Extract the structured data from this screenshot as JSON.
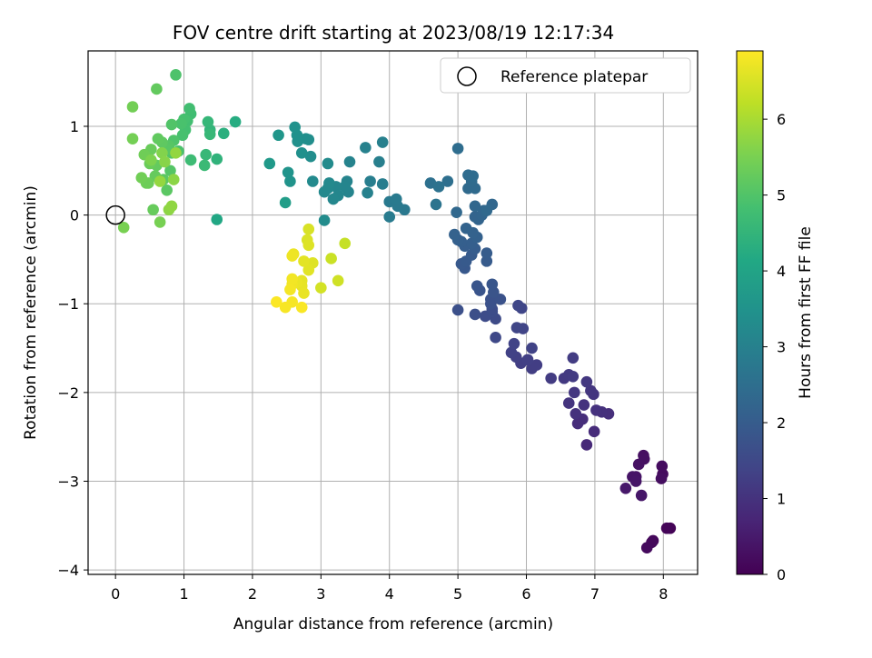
{
  "chart_data": {
    "type": "scatter",
    "title": "FOV centre drift starting at 2023/08/19 12:17:34",
    "xlabel": "Angular distance from reference (arcmin)",
    "ylabel": "Rotation from reference (arcmin)",
    "xlim": [
      -0.4,
      8.5
    ],
    "ylim": [
      -4.05,
      1.85
    ],
    "x_ticks": [
      0,
      1,
      2,
      3,
      4,
      5,
      6,
      7,
      8
    ],
    "x_tick_labels": [
      "0",
      "1",
      "2",
      "3",
      "4",
      "5",
      "6",
      "7",
      "8"
    ],
    "y_ticks": [
      -4,
      -3,
      -2,
      -1,
      0,
      1
    ],
    "y_tick_labels": [
      "−4",
      "−3",
      "−2",
      "−1",
      "0",
      "1"
    ],
    "grid": true,
    "legend": {
      "placement": "top-right",
      "entries": [
        {
          "label": "Reference platepar",
          "marker": "open-circle"
        }
      ]
    },
    "reference_point": {
      "x": 0,
      "y": 0
    },
    "colorbar": {
      "label": "Hours from first FF file",
      "range": [
        0,
        6.9
      ],
      "ticks": [
        0,
        1,
        2,
        3,
        4,
        5,
        6
      ],
      "tick_labels": [
        "0",
        "1",
        "2",
        "3",
        "4",
        "5",
        "6"
      ],
      "colormap": "viridis"
    },
    "points": [
      {
        "x": 8.1,
        "y": -3.53,
        "hours": 0.05
      },
      {
        "x": 8.05,
        "y": -3.53,
        "hours": 0.08
      },
      {
        "x": 7.85,
        "y": -3.67,
        "hours": 0.12
      },
      {
        "x": 7.83,
        "y": -3.69,
        "hours": 0.15
      },
      {
        "x": 7.76,
        "y": -3.75,
        "hours": 0.18
      },
      {
        "x": 7.99,
        "y": -2.92,
        "hours": 0.2
      },
      {
        "x": 7.98,
        "y": -2.83,
        "hours": 0.22
      },
      {
        "x": 7.97,
        "y": -2.97,
        "hours": 0.25
      },
      {
        "x": 7.71,
        "y": -2.71,
        "hours": 0.28
      },
      {
        "x": 7.72,
        "y": -2.75,
        "hours": 0.3
      },
      {
        "x": 7.64,
        "y": -2.81,
        "hours": 0.32
      },
      {
        "x": 7.6,
        "y": -2.95,
        "hours": 0.35
      },
      {
        "x": 7.55,
        "y": -2.95,
        "hours": 0.38
      },
      {
        "x": 7.6,
        "y": -3.0,
        "hours": 0.4
      },
      {
        "x": 7.68,
        "y": -3.16,
        "hours": 0.42
      },
      {
        "x": 7.45,
        "y": -3.08,
        "hours": 0.45
      },
      {
        "x": 6.88,
        "y": -2.59,
        "hours": 0.8
      },
      {
        "x": 6.99,
        "y": -2.44,
        "hours": 0.85
      },
      {
        "x": 6.75,
        "y": -2.35,
        "hours": 0.88
      },
      {
        "x": 6.82,
        "y": -2.3,
        "hours": 0.9
      },
      {
        "x": 7.2,
        "y": -2.24,
        "hours": 0.92
      },
      {
        "x": 7.1,
        "y": -2.22,
        "hours": 0.95
      },
      {
        "x": 7.02,
        "y": -2.2,
        "hours": 0.98
      },
      {
        "x": 6.72,
        "y": -2.24,
        "hours": 1.0
      },
      {
        "x": 6.84,
        "y": -2.14,
        "hours": 1.02
      },
      {
        "x": 6.62,
        "y": -2.12,
        "hours": 1.04
      },
      {
        "x": 6.98,
        "y": -2.02,
        "hours": 1.06
      },
      {
        "x": 6.94,
        "y": -1.98,
        "hours": 1.08
      },
      {
        "x": 6.7,
        "y": -2.0,
        "hours": 1.1
      },
      {
        "x": 6.88,
        "y": -1.88,
        "hours": 1.12
      },
      {
        "x": 6.55,
        "y": -1.84,
        "hours": 1.14
      },
      {
        "x": 6.62,
        "y": -1.8,
        "hours": 1.16
      },
      {
        "x": 6.68,
        "y": -1.82,
        "hours": 1.18
      },
      {
        "x": 6.36,
        "y": -1.84,
        "hours": 1.2
      },
      {
        "x": 6.68,
        "y": -1.61,
        "hours": 1.22
      },
      {
        "x": 6.08,
        "y": -1.73,
        "hours": 1.24
      },
      {
        "x": 6.15,
        "y": -1.69,
        "hours": 1.26
      },
      {
        "x": 5.92,
        "y": -1.67,
        "hours": 1.28
      },
      {
        "x": 6.02,
        "y": -1.63,
        "hours": 1.3
      },
      {
        "x": 5.85,
        "y": -1.6,
        "hours": 1.32
      },
      {
        "x": 5.78,
        "y": -1.55,
        "hours": 1.34
      },
      {
        "x": 6.08,
        "y": -1.5,
        "hours": 1.36
      },
      {
        "x": 5.82,
        "y": -1.45,
        "hours": 1.38
      },
      {
        "x": 5.95,
        "y": -1.28,
        "hours": 1.4
      },
      {
        "x": 5.86,
        "y": -1.27,
        "hours": 1.42
      },
      {
        "x": 5.93,
        "y": -1.05,
        "hours": 1.44
      },
      {
        "x": 5.88,
        "y": -1.02,
        "hours": 1.46
      },
      {
        "x": 5.55,
        "y": -1.38,
        "hours": 1.5
      },
      {
        "x": 5.55,
        "y": -1.17,
        "hours": 1.55
      },
      {
        "x": 5.4,
        "y": -1.14,
        "hours": 1.58
      },
      {
        "x": 5.5,
        "y": -1.09,
        "hours": 1.6
      },
      {
        "x": 5.5,
        "y": -1.06,
        "hours": 1.62
      },
      {
        "x": 5.25,
        "y": -1.12,
        "hours": 1.65
      },
      {
        "x": 5.0,
        "y": -1.07,
        "hours": 1.68
      },
      {
        "x": 5.48,
        "y": -1.0,
        "hours": 1.7
      },
      {
        "x": 5.48,
        "y": -0.95,
        "hours": 1.72
      },
      {
        "x": 5.62,
        "y": -0.95,
        "hours": 1.75
      },
      {
        "x": 5.52,
        "y": -0.87,
        "hours": 1.78
      },
      {
        "x": 5.32,
        "y": -0.85,
        "hours": 1.8
      },
      {
        "x": 5.28,
        "y": -0.8,
        "hours": 1.82
      },
      {
        "x": 5.5,
        "y": -0.78,
        "hours": 1.84
      },
      {
        "x": 5.1,
        "y": -0.6,
        "hours": 1.9
      },
      {
        "x": 5.05,
        "y": -0.55,
        "hours": 1.92
      },
      {
        "x": 5.12,
        "y": -0.52,
        "hours": 1.94
      },
      {
        "x": 5.42,
        "y": -0.52,
        "hours": 1.96
      },
      {
        "x": 5.2,
        "y": -0.45,
        "hours": 1.98
      },
      {
        "x": 5.42,
        "y": -0.43,
        "hours": 2.0
      },
      {
        "x": 5.25,
        "y": -0.38,
        "hours": 2.02
      },
      {
        "x": 5.1,
        "y": -0.35,
        "hours": 2.04
      },
      {
        "x": 5.2,
        "y": -0.32,
        "hours": 2.06
      },
      {
        "x": 5.05,
        "y": -0.3,
        "hours": 2.08
      },
      {
        "x": 5.0,
        "y": -0.28,
        "hours": 2.1
      },
      {
        "x": 5.28,
        "y": -0.25,
        "hours": 2.12
      },
      {
        "x": 4.95,
        "y": -0.22,
        "hours": 2.14
      },
      {
        "x": 5.22,
        "y": -0.2,
        "hours": 2.16
      },
      {
        "x": 5.12,
        "y": -0.15,
        "hours": 2.18
      },
      {
        "x": 5.3,
        "y": -0.05,
        "hours": 2.2
      },
      {
        "x": 5.25,
        "y": -0.02,
        "hours": 2.22
      },
      {
        "x": 5.35,
        "y": 0.0,
        "hours": 2.24
      },
      {
        "x": 5.38,
        "y": 0.05,
        "hours": 2.26
      },
      {
        "x": 5.5,
        "y": 0.12,
        "hours": 2.28
      },
      {
        "x": 5.25,
        "y": 0.1,
        "hours": 2.3
      },
      {
        "x": 4.98,
        "y": 0.03,
        "hours": 2.32
      },
      {
        "x": 5.42,
        "y": 0.05,
        "hours": 2.34
      },
      {
        "x": 5.15,
        "y": 0.3,
        "hours": 2.36
      },
      {
        "x": 5.25,
        "y": 0.3,
        "hours": 2.38
      },
      {
        "x": 5.2,
        "y": 0.38,
        "hours": 2.4
      },
      {
        "x": 5.22,
        "y": 0.44,
        "hours": 2.42
      },
      {
        "x": 5.15,
        "y": 0.45,
        "hours": 2.44
      },
      {
        "x": 5.0,
        "y": 0.75,
        "hours": 2.46
      },
      {
        "x": 4.85,
        "y": 0.38,
        "hours": 2.5
      },
      {
        "x": 4.6,
        "y": 0.36,
        "hours": 2.55
      },
      {
        "x": 4.72,
        "y": 0.32,
        "hours": 2.6
      },
      {
        "x": 4.68,
        "y": 0.12,
        "hours": 2.65
      },
      {
        "x": 4.22,
        "y": 0.06,
        "hours": 2.75
      },
      {
        "x": 4.12,
        "y": 0.1,
        "hours": 2.78
      },
      {
        "x": 4.0,
        "y": 0.15,
        "hours": 2.8
      },
      {
        "x": 4.1,
        "y": 0.18,
        "hours": 2.82
      },
      {
        "x": 4.0,
        "y": -0.02,
        "hours": 2.85
      },
      {
        "x": 3.9,
        "y": 0.35,
        "hours": 2.9
      },
      {
        "x": 3.72,
        "y": 0.38,
        "hours": 2.92
      },
      {
        "x": 3.85,
        "y": 0.6,
        "hours": 2.95
      },
      {
        "x": 3.9,
        "y": 0.82,
        "hours": 2.97
      },
      {
        "x": 3.65,
        "y": 0.76,
        "hours": 3.0
      },
      {
        "x": 3.68,
        "y": 0.25,
        "hours": 3.02
      },
      {
        "x": 3.42,
        "y": 0.6,
        "hours": 3.05
      },
      {
        "x": 3.38,
        "y": 0.38,
        "hours": 3.08
      },
      {
        "x": 3.4,
        "y": 0.26,
        "hours": 3.1
      },
      {
        "x": 3.35,
        "y": 0.32,
        "hours": 3.12
      },
      {
        "x": 3.22,
        "y": 0.32,
        "hours": 3.14
      },
      {
        "x": 3.25,
        "y": 0.22,
        "hours": 3.16
      },
      {
        "x": 3.18,
        "y": 0.18,
        "hours": 3.18
      },
      {
        "x": 3.1,
        "y": 0.3,
        "hours": 3.2
      },
      {
        "x": 3.05,
        "y": 0.26,
        "hours": 3.22
      },
      {
        "x": 3.12,
        "y": 0.36,
        "hours": 3.24
      },
      {
        "x": 2.88,
        "y": 0.38,
        "hours": 3.26
      },
      {
        "x": 3.1,
        "y": 0.58,
        "hours": 3.28
      },
      {
        "x": 3.05,
        "y": -0.06,
        "hours": 3.3
      },
      {
        "x": 2.85,
        "y": 0.66,
        "hours": 3.35
      },
      {
        "x": 2.82,
        "y": 0.85,
        "hours": 3.38
      },
      {
        "x": 2.78,
        "y": 0.86,
        "hours": 3.4
      },
      {
        "x": 2.72,
        "y": 0.7,
        "hours": 3.42
      },
      {
        "x": 2.66,
        "y": 0.83,
        "hours": 3.44
      },
      {
        "x": 2.65,
        "y": 0.9,
        "hours": 3.46
      },
      {
        "x": 2.62,
        "y": 0.99,
        "hours": 3.48
      },
      {
        "x": 2.55,
        "y": 0.38,
        "hours": 3.5
      },
      {
        "x": 2.52,
        "y": 0.48,
        "hours": 3.55
      },
      {
        "x": 2.38,
        "y": 0.9,
        "hours": 3.6
      },
      {
        "x": 2.25,
        "y": 0.58,
        "hours": 3.7
      },
      {
        "x": 2.48,
        "y": 0.14,
        "hours": 3.8
      },
      {
        "x": 1.48,
        "y": -0.05,
        "hours": 4.1
      },
      {
        "x": 1.75,
        "y": 1.05,
        "hours": 4.25
      },
      {
        "x": 1.58,
        "y": 0.92,
        "hours": 4.35
      },
      {
        "x": 1.48,
        "y": 0.63,
        "hours": 4.45
      },
      {
        "x": 1.38,
        "y": 0.96,
        "hours": 4.5
      },
      {
        "x": 1.35,
        "y": 1.05,
        "hours": 4.55
      },
      {
        "x": 1.38,
        "y": 0.91,
        "hours": 4.58
      },
      {
        "x": 1.32,
        "y": 0.68,
        "hours": 4.6
      },
      {
        "x": 1.3,
        "y": 0.56,
        "hours": 4.65
      },
      {
        "x": 1.1,
        "y": 0.62,
        "hours": 4.7
      },
      {
        "x": 1.1,
        "y": 1.14,
        "hours": 4.75
      },
      {
        "x": 1.08,
        "y": 1.2,
        "hours": 4.78
      },
      {
        "x": 1.05,
        "y": 1.06,
        "hours": 4.8
      },
      {
        "x": 1.02,
        "y": 0.96,
        "hours": 4.82
      },
      {
        "x": 1.0,
        "y": 1.08,
        "hours": 4.85
      },
      {
        "x": 0.98,
        "y": 0.9,
        "hours": 4.87
      },
      {
        "x": 0.96,
        "y": 1.03,
        "hours": 4.9
      },
      {
        "x": 0.92,
        "y": 0.72,
        "hours": 4.92
      },
      {
        "x": 0.88,
        "y": 1.58,
        "hours": 4.95
      },
      {
        "x": 0.85,
        "y": 0.84,
        "hours": 4.97
      },
      {
        "x": 0.82,
        "y": 1.02,
        "hours": 5.0
      },
      {
        "x": 0.82,
        "y": 0.7,
        "hours": 5.02
      },
      {
        "x": 0.8,
        "y": 0.5,
        "hours": 5.05
      },
      {
        "x": 0.78,
        "y": 0.78,
        "hours": 5.07
      },
      {
        "x": 0.75,
        "y": 0.74,
        "hours": 5.1
      },
      {
        "x": 0.75,
        "y": 0.28,
        "hours": 5.12
      },
      {
        "x": 0.7,
        "y": 0.4,
        "hours": 5.15
      },
      {
        "x": 0.68,
        "y": 0.82,
        "hours": 5.17
      },
      {
        "x": 0.62,
        "y": 0.86,
        "hours": 5.2
      },
      {
        "x": 0.6,
        "y": 1.42,
        "hours": 5.22
      },
      {
        "x": 0.6,
        "y": 0.56,
        "hours": 5.24
      },
      {
        "x": 0.58,
        "y": 0.44,
        "hours": 5.26
      },
      {
        "x": 0.55,
        "y": 0.06,
        "hours": 5.28
      },
      {
        "x": 0.52,
        "y": 0.74,
        "hours": 5.3
      },
      {
        "x": 0.5,
        "y": 0.58,
        "hours": 5.32
      },
      {
        "x": 0.48,
        "y": 0.36,
        "hours": 5.34
      },
      {
        "x": 0.45,
        "y": 0.36,
        "hours": 5.36
      },
      {
        "x": 0.42,
        "y": 0.68,
        "hours": 5.38
      },
      {
        "x": 0.38,
        "y": 0.42,
        "hours": 5.4
      },
      {
        "x": 0.25,
        "y": 1.22,
        "hours": 5.42
      },
      {
        "x": 0.25,
        "y": 0.86,
        "hours": 5.44
      },
      {
        "x": 0.65,
        "y": -0.08,
        "hours": 5.48
      },
      {
        "x": 0.12,
        "y": -0.14,
        "hours": 5.5
      },
      {
        "x": 0.52,
        "y": 0.62,
        "hours": 5.55
      },
      {
        "x": 0.68,
        "y": 0.7,
        "hours": 5.6
      },
      {
        "x": 0.72,
        "y": 0.6,
        "hours": 5.65
      },
      {
        "x": 0.85,
        "y": 0.4,
        "hours": 5.7
      },
      {
        "x": 0.78,
        "y": 0.06,
        "hours": 5.72
      },
      {
        "x": 0.82,
        "y": 0.1,
        "hours": 5.75
      },
      {
        "x": 0.88,
        "y": 0.7,
        "hours": 5.78
      },
      {
        "x": 0.65,
        "y": 0.38,
        "hours": 5.8
      },
      {
        "x": 3.35,
        "y": -0.32,
        "hours": 6.3
      },
      {
        "x": 3.15,
        "y": -0.49,
        "hours": 6.35
      },
      {
        "x": 3.25,
        "y": -0.74,
        "hours": 6.4
      },
      {
        "x": 3.0,
        "y": -0.82,
        "hours": 6.45
      },
      {
        "x": 2.82,
        "y": -0.16,
        "hours": 6.5
      },
      {
        "x": 2.8,
        "y": -0.28,
        "hours": 6.52
      },
      {
        "x": 2.82,
        "y": -0.34,
        "hours": 6.55
      },
      {
        "x": 2.88,
        "y": -0.54,
        "hours": 6.57
      },
      {
        "x": 2.82,
        "y": -0.62,
        "hours": 6.6
      },
      {
        "x": 2.75,
        "y": -0.52,
        "hours": 6.62
      },
      {
        "x": 2.72,
        "y": -0.74,
        "hours": 6.64
      },
      {
        "x": 2.72,
        "y": -0.8,
        "hours": 6.66
      },
      {
        "x": 2.75,
        "y": -0.88,
        "hours": 6.68
      },
      {
        "x": 2.65,
        "y": -0.76,
        "hours": 6.7
      },
      {
        "x": 2.6,
        "y": -0.44,
        "hours": 6.72
      },
      {
        "x": 2.58,
        "y": -0.46,
        "hours": 6.74
      },
      {
        "x": 2.58,
        "y": -0.78,
        "hours": 6.76
      },
      {
        "x": 2.58,
        "y": -0.72,
        "hours": 6.78
      },
      {
        "x": 2.55,
        "y": -0.84,
        "hours": 6.8
      },
      {
        "x": 2.58,
        "y": -0.98,
        "hours": 6.82
      },
      {
        "x": 2.48,
        "y": -1.04,
        "hours": 6.84
      },
      {
        "x": 2.72,
        "y": -1.04,
        "hours": 6.86
      },
      {
        "x": 2.35,
        "y": -0.98,
        "hours": 6.88
      }
    ]
  }
}
